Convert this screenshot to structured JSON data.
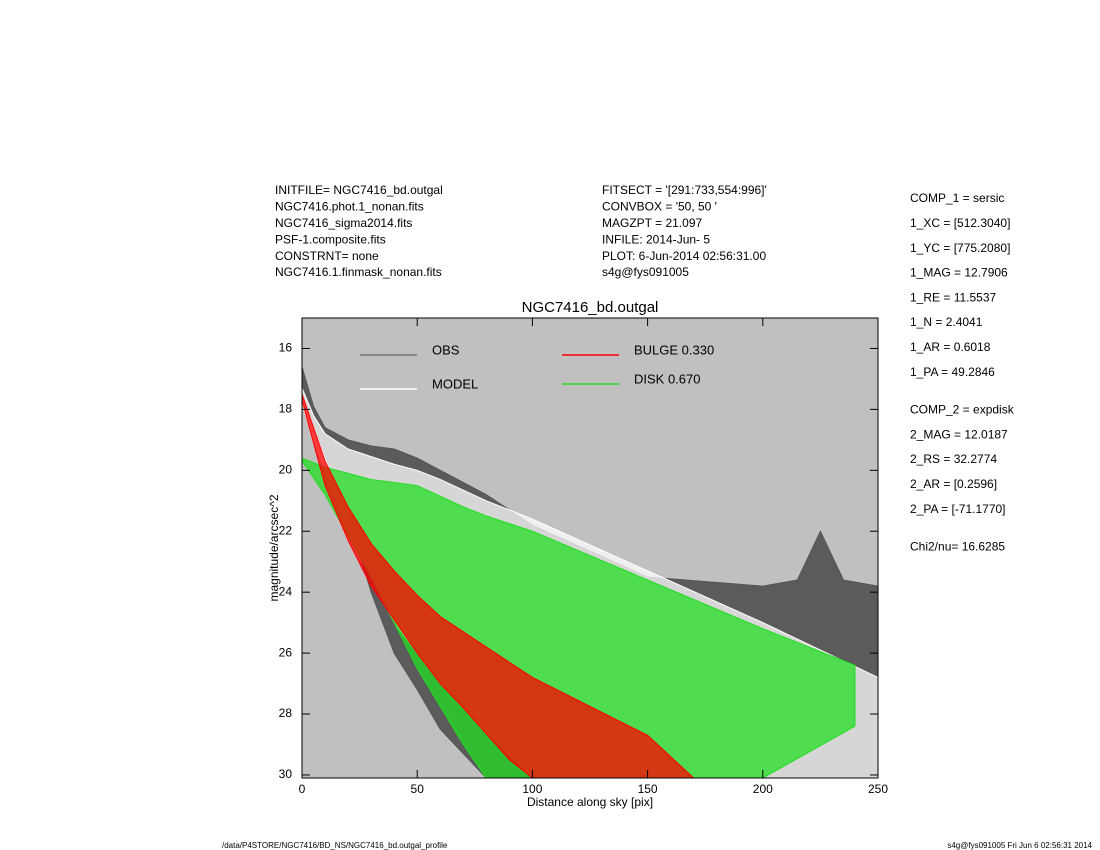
{
  "header": {
    "left": [
      "INITFILE= NGC7416_bd.outgal",
      "NGC7416.phot.1_nonan.fits",
      "NGC7416_sigma2014.fits",
      "PSF-1.composite.fits",
      "CONSTRNT= none",
      "NGC7416.1.finmask_nonan.fits"
    ],
    "middle": [
      "FITSECT = '[291:733,554:996]'",
      "CONVBOX = '50, 50  '",
      "MAGZPT =              21.097",
      "INFILE: 2014-Jun- 5",
      "PLOT:  6-Jun-2014 02:56:31.00",
      "s4g@fys091005"
    ],
    "right": [
      [
        "COMP_1  = sersic",
        "1_XC     = [512.3040]",
        "1_YC     = [775.2080]",
        "1_MAG    = 12.7906",
        "1_RE     = 11.5537",
        "1_N     = 2.4041",
        "1_AR     = 0.6018",
        "1_PA     = 49.2846"
      ],
      [
        "COMP_2  = expdisk",
        "2_MAG    = 12.0187",
        "2_RS     = 32.2774",
        "2_AR     = [0.2596]",
        "2_PA     = [-71.1770]"
      ],
      [
        "Chi2/nu=      16.6285"
      ]
    ]
  },
  "footer": {
    "left": "/data/P4STORE/NGC7416/BD_NS/NGC7416_bd.outgal_profile",
    "right": "s4g@fys091005  Fri Jun  6 02:56:31 2014"
  },
  "chart_data": {
    "type": "band",
    "title": "NGC7416_bd.outgal",
    "x_label": "Distance along sky [pix]",
    "y_label": "magnitude/arcsec^2",
    "xlim": [
      0,
      250
    ],
    "ylim": [
      30.1,
      15
    ],
    "xticks": [
      0,
      50,
      100,
      150,
      200,
      250
    ],
    "yticks": [
      16,
      18,
      20,
      22,
      24,
      26,
      28,
      30
    ],
    "background": "#c0c0c0",
    "series": [
      {
        "name": "OBS",
        "color": "#555555",
        "x": [
          0,
          5,
          10,
          20,
          30,
          40,
          50,
          60,
          70,
          80,
          100,
          150,
          200,
          215,
          225,
          235,
          250
        ],
        "values": [
          16.6,
          17.9,
          18.6,
          19.0,
          19.2,
          19.3,
          19.6,
          20.0,
          20.4,
          20.8,
          21.8,
          23.5,
          23.8,
          23.6,
          22.0,
          23.6,
          23.8
        ],
        "lower": [
          17.5,
          18.6,
          19.5,
          21.5,
          24.0,
          26.0,
          27.2,
          28.5,
          29.3,
          30.1,
          30.1,
          30.1,
          30.1,
          30.1,
          30.1,
          30.1,
          30.1
        ]
      },
      {
        "name": "MODEL",
        "color": "#ffffff",
        "x": [
          0,
          5,
          10,
          20,
          40,
          50,
          60,
          80,
          100,
          150,
          200,
          250
        ],
        "values": [
          17.3,
          18.2,
          18.8,
          19.3,
          19.8,
          20.0,
          20.3,
          21.0,
          21.6,
          23.3,
          25.0,
          26.8
        ],
        "lower": [
          17.8,
          19.0,
          20.0,
          22.0,
          25.0,
          26.0,
          27.0,
          28.6,
          30.1,
          30.1,
          30.1,
          30.1
        ]
      },
      {
        "name": "DISK  0.670",
        "color": "#22dd22",
        "x": [
          0,
          10,
          30,
          50,
          70,
          80,
          100,
          150,
          200,
          240
        ],
        "values": [
          19.6,
          19.9,
          20.3,
          20.5,
          21.2,
          21.5,
          22.0,
          23.6,
          25.2,
          26.4
        ],
        "lower": [
          19.7,
          20.8,
          23.5,
          26.5,
          29.0,
          30.1,
          30.1,
          30.1,
          30.1,
          28.4
        ]
      },
      {
        "name": "BULGE  0.330",
        "color": "#ff0000",
        "x": [
          0,
          10,
          20,
          30,
          40,
          50,
          60,
          70,
          90,
          100,
          150,
          170
        ],
        "values": [
          17.5,
          19.7,
          21.2,
          22.4,
          23.3,
          24.1,
          24.8,
          25.3,
          26.3,
          26.8,
          28.7,
          30.1
        ],
        "lower": [
          17.7,
          20.5,
          22.3,
          23.8,
          24.9,
          26.0,
          27.0,
          27.8,
          29.5,
          30.1,
          30.1,
          30.1
        ]
      }
    ]
  }
}
